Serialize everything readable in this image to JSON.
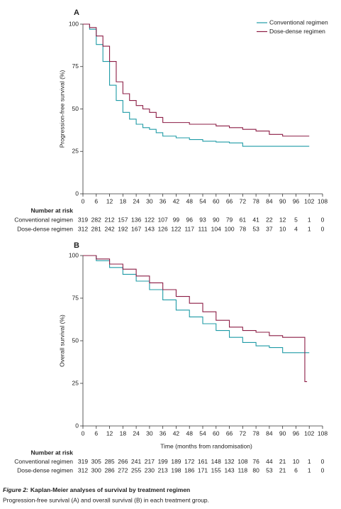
{
  "chart_data": [
    {
      "type": "line",
      "drawstyle": "steps-post",
      "panel": "A",
      "ylabel": "Progression-free survival (%)",
      "xlim": [
        0,
        108
      ],
      "xticks": [
        0,
        6,
        12,
        18,
        24,
        30,
        36,
        42,
        48,
        54,
        60,
        66,
        72,
        78,
        84,
        90,
        96,
        102,
        108
      ],
      "ylim": [
        0,
        100
      ],
      "yticks": [
        0,
        25,
        50,
        75,
        100
      ],
      "legend": "upper right",
      "series": [
        {
          "name": "Conventional regimen",
          "color": "#1f9ba6",
          "x": [
            0,
            3,
            6,
            9,
            12,
            15,
            18,
            21,
            24,
            27,
            30,
            33,
            36,
            42,
            48,
            54,
            60,
            66,
            72,
            84,
            102
          ],
          "values": [
            100,
            97,
            88,
            78,
            64,
            55,
            48,
            44,
            41,
            39,
            38,
            36,
            34,
            33,
            32,
            31,
            30.5,
            30,
            28,
            28,
            28
          ]
        },
        {
          "name": "Dose-dense regimen",
          "color": "#8c1d45",
          "x": [
            0,
            3,
            6,
            9,
            12,
            15,
            18,
            21,
            24,
            27,
            30,
            33,
            36,
            42,
            48,
            60,
            66,
            72,
            78,
            84,
            90,
            102
          ],
          "values": [
            100,
            98,
            93,
            87,
            78,
            66,
            59,
            55,
            52,
            50,
            48,
            45,
            42,
            42,
            41,
            40,
            39,
            38,
            37,
            35,
            34,
            34
          ]
        }
      ],
      "risk_table": {
        "title": "Number at risk",
        "rows": [
          {
            "name": "Conventional regimen",
            "values": [
              319,
              282,
              212,
              157,
              136,
              122,
              107,
              99,
              96,
              93,
              90,
              79,
              61,
              41,
              22,
              12,
              5,
              1,
              0
            ]
          },
          {
            "name": "Dose-dense regimen",
            "values": [
              312,
              281,
              242,
              192,
              167,
              143,
              126,
              122,
              117,
              111,
              104,
              100,
              78,
              53,
              37,
              10,
              4,
              1,
              0
            ]
          }
        ]
      }
    },
    {
      "type": "line",
      "drawstyle": "steps-post",
      "panel": "B",
      "ylabel": "Overall survival (%)",
      "xlabel": "Time (months from randomisation)",
      "xlim": [
        0,
        108
      ],
      "xticks": [
        0,
        6,
        12,
        18,
        24,
        30,
        36,
        42,
        48,
        54,
        60,
        66,
        72,
        78,
        84,
        90,
        96,
        102,
        108
      ],
      "ylim": [
        0,
        100
      ],
      "yticks": [
        0,
        25,
        50,
        75,
        100
      ],
      "series": [
        {
          "name": "Conventional regimen",
          "color": "#1f9ba6",
          "x": [
            0,
            6,
            12,
            18,
            24,
            30,
            36,
            42,
            48,
            54,
            60,
            66,
            72,
            78,
            84,
            90,
            102
          ],
          "values": [
            100,
            97,
            93,
            89,
            85,
            80,
            74,
            68,
            64,
            60,
            56,
            52,
            49,
            47,
            46,
            43,
            43
          ]
        },
        {
          "name": "Dose-dense regimen",
          "color": "#8c1d45",
          "x": [
            0,
            6,
            12,
            18,
            24,
            30,
            36,
            42,
            48,
            54,
            60,
            66,
            72,
            78,
            84,
            90,
            100,
            101
          ],
          "values": [
            100,
            98,
            95,
            92,
            88,
            84,
            80,
            76,
            72,
            67,
            62,
            58,
            56,
            55,
            53,
            52,
            26,
            26
          ]
        }
      ],
      "risk_table": {
        "title": "Number at risk",
        "rows": [
          {
            "name": "Conventional regimen",
            "values": [
              319,
              305,
              285,
              266,
              241,
              217,
              199,
              189,
              172,
              161,
              148,
              132,
              108,
              76,
              44,
              21,
              10,
              1,
              0
            ]
          },
          {
            "name": "Dose-dense regimen",
            "values": [
              312,
              300,
              286,
              272,
              255,
              230,
              213,
              198,
              186,
              171,
              155,
              143,
              118,
              80,
              53,
              21,
              6,
              1,
              0
            ]
          }
        ]
      }
    }
  ],
  "caption": {
    "label": "Figure 2:",
    "title": "Kaplan-Meier analyses of survival by treatment regimen",
    "text": "Progression-free survival (A) and overall survival (B) in each treatment group."
  }
}
